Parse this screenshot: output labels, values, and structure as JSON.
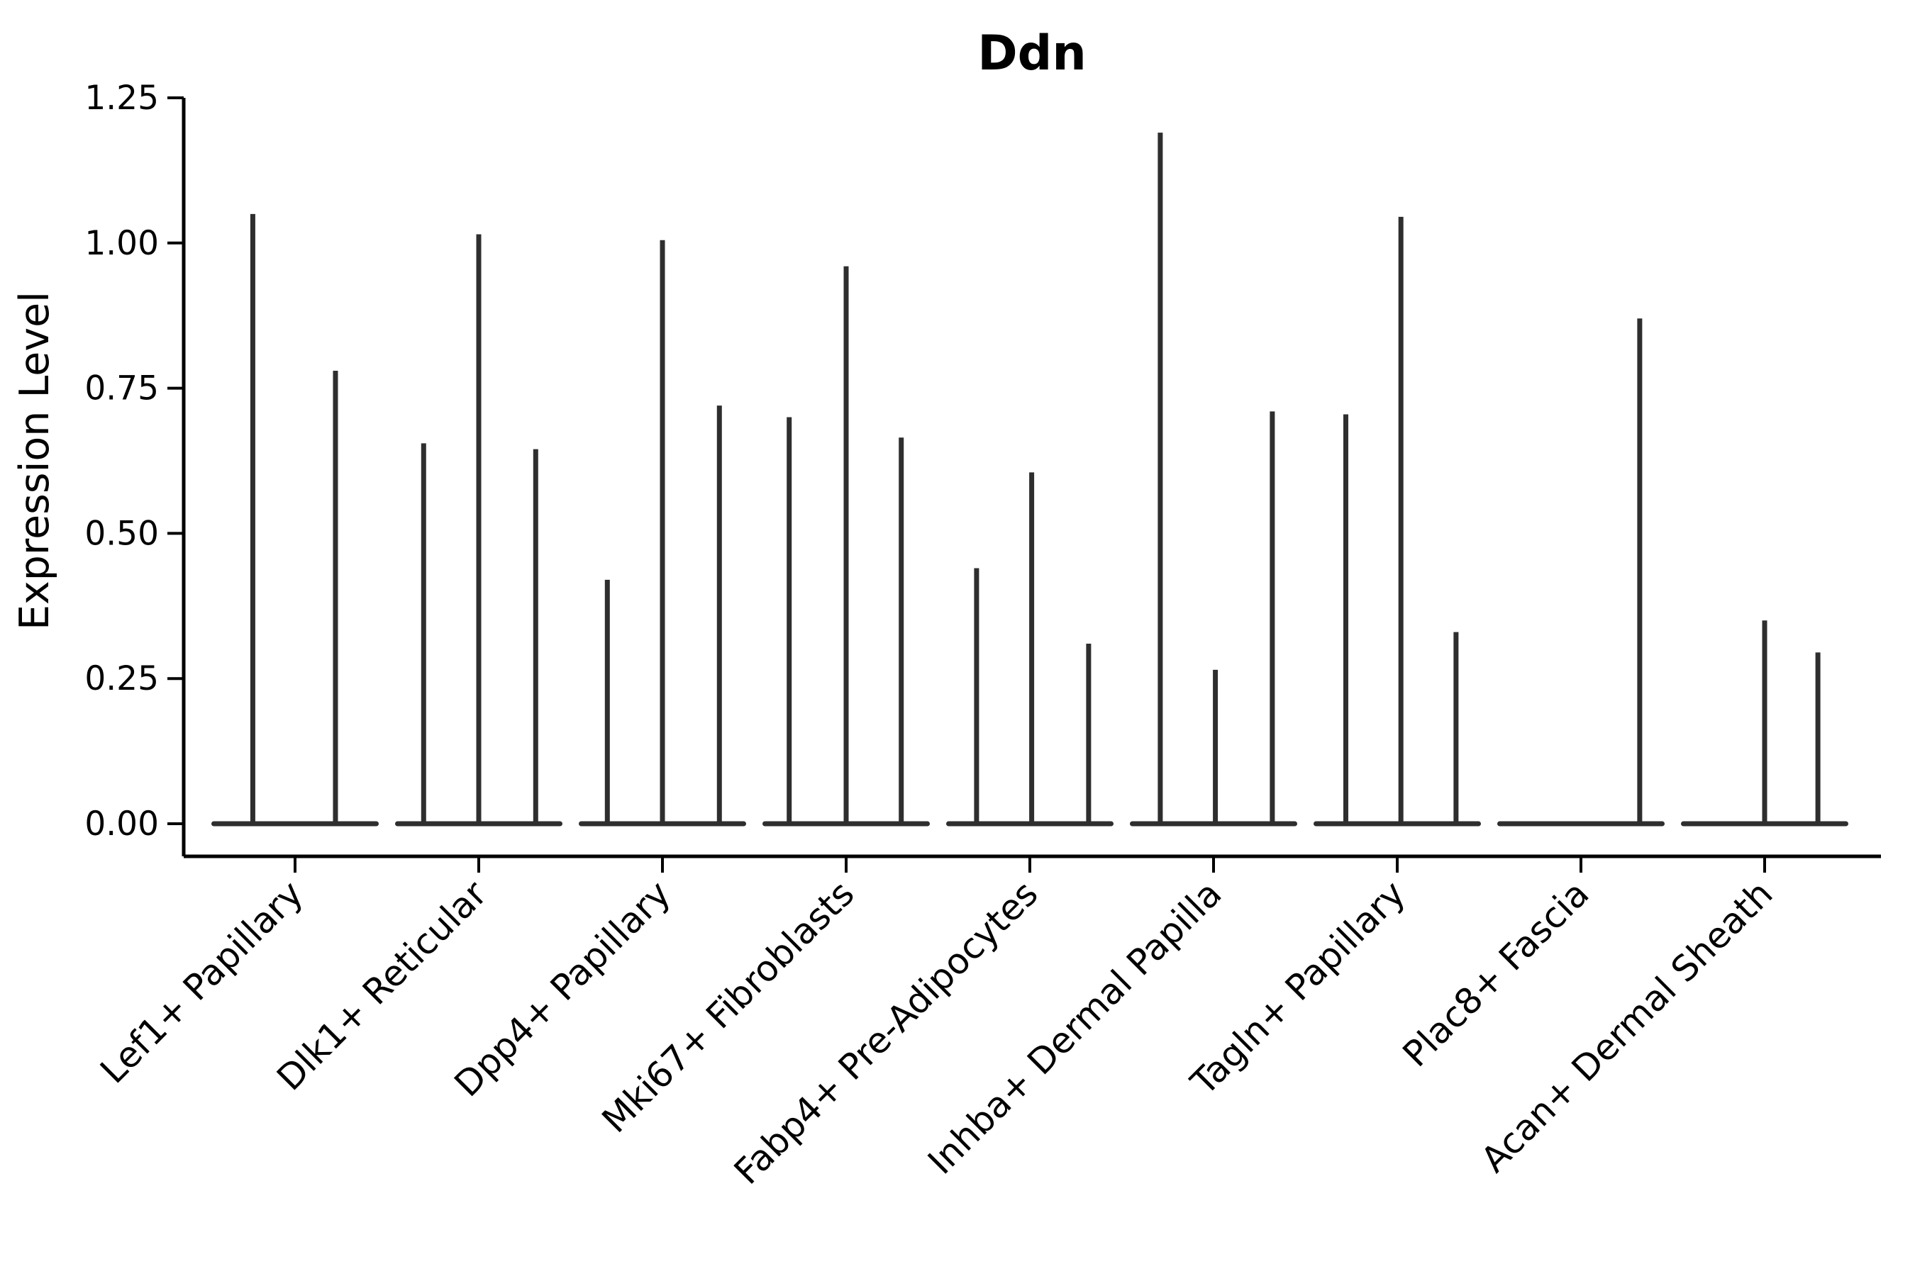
{
  "title": "Ddn",
  "colors": {
    "violin": "#2e2e2e",
    "axis": "#000000",
    "text": "#000000",
    "background": "#ffffff"
  },
  "y_axis": {
    "label": "Expression Level",
    "ticks": [
      "0.00",
      "0.25",
      "0.50",
      "0.75",
      "1.00",
      "1.25"
    ]
  },
  "chart_data": {
    "type": "violin",
    "title": "Ddn",
    "xlabel": "",
    "ylabel": "Expression Level",
    "ylim": [
      0,
      1.25
    ],
    "yticks": [
      0,
      0.25,
      0.5,
      0.75,
      1.0,
      1.25
    ],
    "grid": false,
    "legend": "none",
    "description": "Violin plot of Ddn expression per fibroblast cluster; each cluster shows a flat density base at 0 with thin needle-like peaks for rare expressing cells",
    "categories": [
      "Lef1+ Papillary",
      "Dlk1+ Reticular",
      "Dpp4+ Papillary",
      "Mki67+ Fibroblasts",
      "Fabp4+ Pre-Adipocytes",
      "Inhba+ Dermal Papilla",
      "Tagln+ Papillary",
      "Plac8+ Fascia",
      "Acan+ Dermal Sheath"
    ],
    "series": [
      {
        "name": "Lef1+ Papillary",
        "spikes": [
          {
            "offset": -0.23,
            "value": 1.05
          },
          {
            "offset": 0.22,
            "value": 0.78
          }
        ]
      },
      {
        "name": "Dlk1+ Reticular",
        "spikes": [
          {
            "offset": -0.3,
            "value": 0.655
          },
          {
            "offset": 0.0,
            "value": 1.015
          },
          {
            "offset": 0.31,
            "value": 0.645
          }
        ]
      },
      {
        "name": "Dpp4+ Papillary",
        "spikes": [
          {
            "offset": -0.3,
            "value": 0.42
          },
          {
            "offset": 0.0,
            "value": 1.005
          },
          {
            "offset": 0.31,
            "value": 0.72
          }
        ]
      },
      {
        "name": "Mki67+ Fibroblasts",
        "spikes": [
          {
            "offset": -0.31,
            "value": 0.7
          },
          {
            "offset": 0.0,
            "value": 0.96
          },
          {
            "offset": 0.3,
            "value": 0.665
          }
        ]
      },
      {
        "name": "Fabp4+ Pre-Adipocytes",
        "spikes": [
          {
            "offset": -0.29,
            "value": 0.44
          },
          {
            "offset": 0.01,
            "value": 0.605
          },
          {
            "offset": 0.32,
            "value": 0.31
          }
        ]
      },
      {
        "name": "Inhba+ Dermal Papilla",
        "spikes": [
          {
            "offset": -0.29,
            "value": 1.19
          },
          {
            "offset": 0.01,
            "value": 0.265
          },
          {
            "offset": 0.32,
            "value": 0.71
          }
        ]
      },
      {
        "name": "Tagln+ Papillary",
        "spikes": [
          {
            "offset": -0.28,
            "value": 0.705
          },
          {
            "offset": 0.02,
            "value": 1.045
          },
          {
            "offset": 0.32,
            "value": 0.33
          }
        ]
      },
      {
        "name": "Plac8+ Fascia",
        "spikes": [
          {
            "offset": 0.32,
            "value": 0.87
          }
        ]
      },
      {
        "name": "Acan+ Dermal Sheath",
        "spikes": [
          {
            "offset": 0.0,
            "value": 0.35
          },
          {
            "offset": 0.29,
            "value": 0.295
          }
        ]
      }
    ]
  }
}
